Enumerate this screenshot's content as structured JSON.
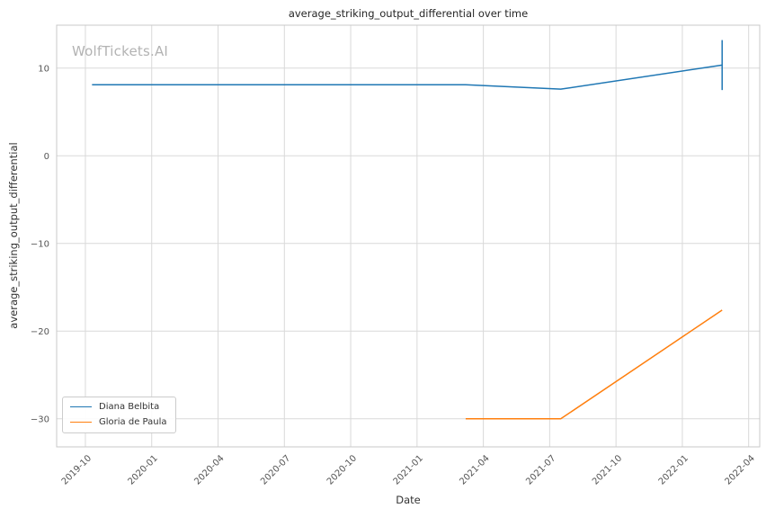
{
  "watermark": "WolfTickets.AI",
  "chart_data": {
    "type": "line",
    "title": "average_striking_output_differential over time",
    "xlabel": "Date",
    "ylabel": "average_striking_output_differential",
    "grid": true,
    "grid_color": "#d9d9d9",
    "spine_color": "#c8c8c8",
    "legend_position": "lower left",
    "x_tick_labels": [
      "2019-10",
      "2020-01",
      "2020-04",
      "2020-07",
      "2020-10",
      "2021-01",
      "2021-04",
      "2021-07",
      "2021-10",
      "2022-01",
      "2022-04"
    ],
    "x_tick_months": [
      0,
      3,
      6,
      9,
      12,
      15,
      18,
      21,
      24,
      27,
      30
    ],
    "y_tick_labels": [
      "−30",
      "−20",
      "−10",
      "0",
      "10"
    ],
    "y_tick_values": [
      -30,
      -20,
      -10,
      0,
      10
    ],
    "xlim_months": [
      -1.3,
      30.5
    ],
    "ylim": [
      -33.2,
      14.9
    ],
    "series": [
      {
        "name": "Diana Belbita",
        "color": "#1f77b4",
        "x_dates": [
          "2019-10",
          "2021-03",
          "2021-07",
          "2022-02"
        ],
        "x_months": [
          0.3,
          17.2,
          21.5,
          28.8
        ],
        "y": [
          8.1,
          8.1,
          7.6,
          10.35
        ]
      },
      {
        "name": "Gloria de Paula",
        "color": "#ff7f0e",
        "x_dates": [
          "2021-03",
          "2021-07",
          "2022-02"
        ],
        "x_months": [
          17.2,
          21.5,
          28.8
        ],
        "y": [
          -30.0,
          -30.0,
          -17.6
        ]
      }
    ],
    "error_bars": [
      {
        "series": "Diana Belbita",
        "x_date": "2022-02",
        "x_month": 28.8,
        "y": 10.35,
        "y_low": 7.5,
        "y_high": 13.2
      }
    ]
  }
}
